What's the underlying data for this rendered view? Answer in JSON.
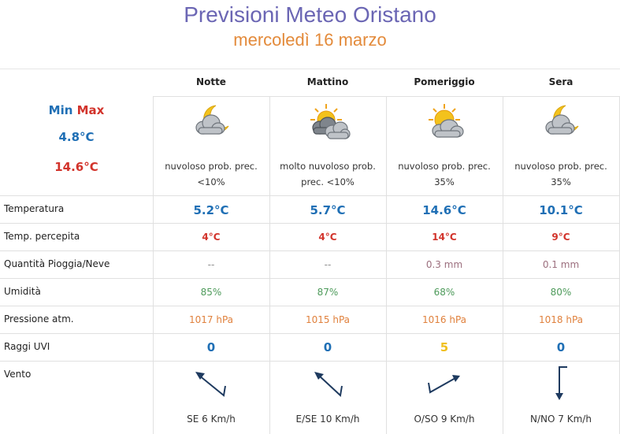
{
  "header": {
    "title": "Previsioni Meteo Oristano",
    "subtitle": "mercoledì 16 marzo"
  },
  "summary": {
    "min_label": "Min",
    "max_label": "Max",
    "min_value": "4.8°C",
    "max_value": "14.6°C"
  },
  "columns": [
    {
      "name": "Notte",
      "icon": "cloud-moon-icon",
      "desc_line1": "nuvoloso prob. prec.",
      "desc_line2": "<10%",
      "temperature": "5.2°C",
      "perceived": "4°C",
      "rain": "--",
      "humidity": "85%",
      "pressure": "1017 hPa",
      "uvi": "0",
      "wind": "SE 6 Km/h",
      "wind_dir": "SE"
    },
    {
      "name": "Mattino",
      "icon": "sun-heavy-clouds-icon",
      "desc_line1": "molto nuvoloso prob.",
      "desc_line2": "prec. <10%",
      "temperature": "5.7°C",
      "perceived": "4°C",
      "rain": "--",
      "humidity": "87%",
      "pressure": "1015 hPa",
      "uvi": "0",
      "wind": "E/SE 10 Km/h",
      "wind_dir": "E/SE"
    },
    {
      "name": "Pomeriggio",
      "icon": "sun-cloud-icon",
      "desc_line1": "nuvoloso prob. prec.",
      "desc_line2": "35%",
      "temperature": "14.6°C",
      "perceived": "14°C",
      "rain": "0.3 mm",
      "humidity": "68%",
      "pressure": "1016 hPa",
      "uvi": "5",
      "wind": "O/SO 9 Km/h",
      "wind_dir": "O/SO"
    },
    {
      "name": "Sera",
      "icon": "cloud-moon-icon",
      "desc_line1": "nuvoloso prob. prec.",
      "desc_line2": "35%",
      "temperature": "10.1°C",
      "perceived": "9°C",
      "rain": "0.1 mm",
      "humidity": "80%",
      "pressure": "1018 hPa",
      "uvi": "0",
      "wind": "N/NO 7 Km/h",
      "wind_dir": "N/NO"
    }
  ],
  "row_labels": {
    "temperature": "Temperatura",
    "perceived": "Temp. percepita",
    "rain": "Quantità Pioggia/Neve",
    "humidity": "Umidità",
    "pressure": "Pressione atm.",
    "uvi": "Raggi UVI",
    "wind": "Vento"
  },
  "colors": {
    "title": "#6b66b4",
    "subtitle": "#e38a3a",
    "cold": "#1f6fb5",
    "hot": "#d2332b",
    "humidity": "#4d9a5a",
    "pressure": "#e0813d",
    "uvi_moderate": "#f0bf1c",
    "wind_arrow": "#1e3a5f"
  }
}
